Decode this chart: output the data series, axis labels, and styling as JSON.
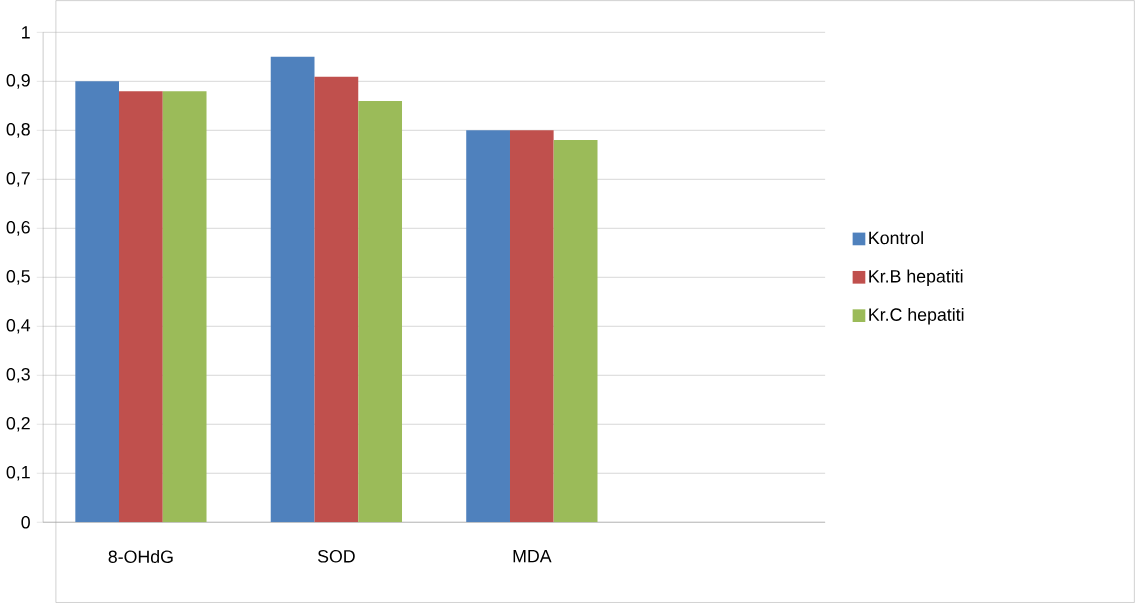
{
  "chart_data": {
    "type": "bar",
    "categories": [
      "8-OHdG",
      "SOD",
      "MDA",
      null
    ],
    "series": [
      {
        "name": "Kontrol",
        "color": "#4f81bd",
        "values": [
          0.9,
          0.95,
          0.8,
          null
        ]
      },
      {
        "name": "Kr.B hepatiti",
        "color": "#c0504d",
        "values": [
          0.88,
          0.91,
          0.8,
          null
        ]
      },
      {
        "name": "Kr.C hepatiti",
        "color": "#9bbb59",
        "values": [
          0.88,
          0.86,
          0.78,
          null
        ]
      }
    ],
    "ylim": [
      0,
      1
    ],
    "yticks": [
      0,
      {
        "value": 0.1,
        "label": "0,1"
      },
      {
        "value": 0.2,
        "label": "0,2"
      },
      {
        "value": 0.3,
        "label": "0,3"
      },
      {
        "value": 0.4,
        "label": "0,4"
      },
      {
        "value": 0.5,
        "label": "0,5"
      },
      {
        "value": 0.6,
        "label": "0,6"
      },
      {
        "value": 0.7,
        "label": "0,7"
      },
      {
        "value": 0.8,
        "label": "0,8"
      },
      {
        "value": 0.9,
        "label": "0,9"
      },
      1
    ],
    "grid": "y",
    "legend": "right"
  }
}
